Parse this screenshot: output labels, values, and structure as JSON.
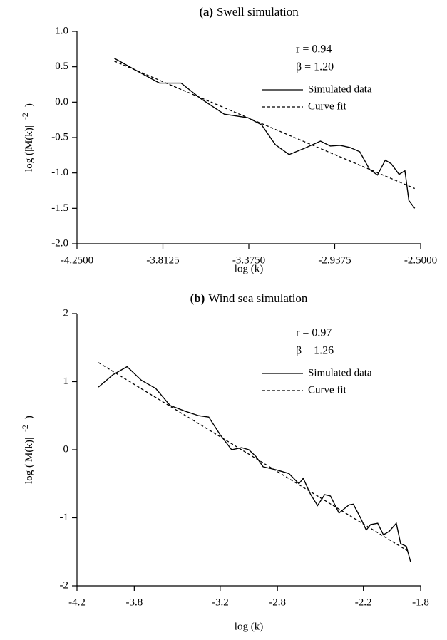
{
  "chart_data": [
    {
      "type": "line",
      "panel": "(a)",
      "title": "Swell simulation",
      "xlabel": "log (k)",
      "ylabel": "log (|M(k)|",
      "ylabel_sup": "-2",
      "ylabel_end": ")",
      "annotations": [
        "r = 0.94",
        "β = 1.20"
      ],
      "xlim": [
        -4.25,
        -2.5
      ],
      "xticks": [
        {
          "value": -4.25,
          "label": "-4.2500"
        },
        {
          "value": -3.8125,
          "label": "-3.8125"
        },
        {
          "value": -3.375,
          "label": "-3.3750"
        },
        {
          "value": -2.9375,
          "label": "-2.9375"
        },
        {
          "value": -2.5,
          "label": "-2.5000"
        }
      ],
      "ylim": [
        -2.0,
        1.0
      ],
      "yticks": [
        {
          "value": -2.0,
          "label": "-2.0"
        },
        {
          "value": -1.5,
          "label": "-1.5"
        },
        {
          "value": -1.0,
          "label": "-1.0"
        },
        {
          "value": -0.5,
          "label": "-0.5"
        },
        {
          "value": 0,
          "label": "0.0"
        },
        {
          "value": 0.5,
          "label": "0.5"
        },
        {
          "value": 1.0,
          "label": "1.0"
        }
      ],
      "series": [
        {
          "name": "Simulated data",
          "color": "#000000",
          "style": "solid",
          "x": [
            -4.06,
            -3.95,
            -3.83,
            -3.72,
            -3.62,
            -3.5,
            -3.38,
            -3.31,
            -3.24,
            -3.17,
            -3.09,
            -3.01,
            -2.96,
            -2.91,
            -2.86,
            -2.81,
            -2.76,
            -2.72,
            -2.68,
            -2.65,
            -2.61,
            -2.58,
            -2.56,
            -2.53
          ],
          "values": [
            0.62,
            0.45,
            0.27,
            0.27,
            0.05,
            -0.17,
            -0.22,
            -0.32,
            -0.6,
            -0.74,
            -0.65,
            -0.55,
            -0.62,
            -0.61,
            -0.64,
            -0.7,
            -0.95,
            -1.03,
            -0.82,
            -0.87,
            -1.02,
            -0.97,
            -1.39,
            -1.5
          ]
        },
        {
          "name": "Curve fit",
          "color": "#000000",
          "style": "dashed",
          "x": [
            -4.06,
            -2.53
          ],
          "values": [
            0.58,
            -1.22
          ]
        }
      ]
    },
    {
      "type": "line",
      "panel": "(b)",
      "title": "Wind sea simulation",
      "xlabel": "log (k)",
      "ylabel": "log (|M(k)|",
      "ylabel_sup": "-2",
      "ylabel_end": ")",
      "annotations": [
        "r = 0.97",
        "β = 1.26"
      ],
      "xlim": [
        -4.2,
        -1.8
      ],
      "xticks": [
        -4.2,
        -3.8,
        -3.2,
        -2.8,
        -2.2,
        -1.8
      ],
      "ylim": [
        -2,
        2
      ],
      "yticks": [
        -2,
        -1,
        0,
        1,
        2
      ],
      "series": [
        {
          "name": "Simulated data",
          "color": "#000000",
          "style": "solid",
          "x": [
            -4.05,
            -3.95,
            -3.85,
            -3.75,
            -3.65,
            -3.55,
            -3.45,
            -3.35,
            -3.28,
            -3.2,
            -3.12,
            -3.05,
            -3.0,
            -2.95,
            -2.9,
            -2.8,
            -2.72,
            -2.65,
            -2.62,
            -2.57,
            -2.52,
            -2.47,
            -2.43,
            -2.37,
            -2.3,
            -2.27,
            -2.22,
            -2.18,
            -2.15,
            -2.1,
            -2.06,
            -2.02,
            -1.97,
            -1.94,
            -1.9,
            -1.87
          ],
          "values": [
            0.92,
            1.1,
            1.22,
            1.02,
            0.9,
            0.65,
            0.57,
            0.5,
            0.48,
            0.22,
            0.0,
            0.03,
            0.0,
            -0.1,
            -0.25,
            -0.3,
            -0.35,
            -0.5,
            -0.42,
            -0.65,
            -0.82,
            -0.66,
            -0.68,
            -0.93,
            -0.81,
            -0.8,
            -1.0,
            -1.18,
            -1.1,
            -1.08,
            -1.25,
            -1.2,
            -1.08,
            -1.38,
            -1.42,
            -1.65
          ]
        },
        {
          "name": "Curve fit",
          "color": "#000000",
          "style": "dashed",
          "x": [
            -4.05,
            -1.88
          ],
          "values": [
            1.28,
            -1.5
          ]
        }
      ]
    }
  ]
}
